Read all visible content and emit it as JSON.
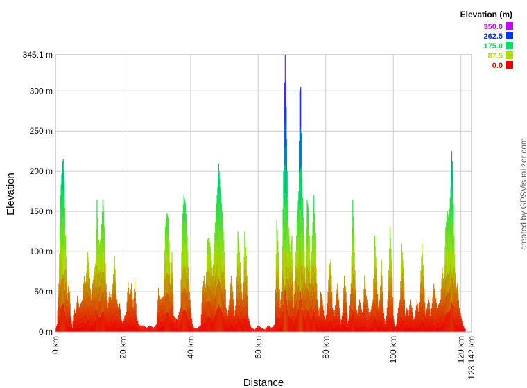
{
  "chart_data": {
    "type": "area",
    "xlabel": "Distance",
    "ylabel": "Elevation",
    "xlim": [
      0,
      123.142
    ],
    "ylim": [
      0,
      345.1
    ],
    "x_ticks": [
      {
        "value": 0,
        "label": "0 km"
      },
      {
        "value": 20,
        "label": "20 km"
      },
      {
        "value": 40,
        "label": "40 km"
      },
      {
        "value": 60,
        "label": "60 km"
      },
      {
        "value": 80,
        "label": "80 km"
      },
      {
        "value": 100,
        "label": "100 km"
      },
      {
        "value": 120,
        "label": "120 km"
      },
      {
        "value": 123.142,
        "label": "123.142 km"
      }
    ],
    "y_ticks": [
      {
        "value": 0,
        "label": "0 m"
      },
      {
        "value": 50,
        "label": "50 m"
      },
      {
        "value": 100,
        "label": "100 m"
      },
      {
        "value": 150,
        "label": "150 m"
      },
      {
        "value": 200,
        "label": "200 m"
      },
      {
        "value": 250,
        "label": "250 m"
      },
      {
        "value": 300,
        "label": "300 m"
      },
      {
        "value": 345.1,
        "label": "345.1 m"
      }
    ],
    "grid": true,
    "legend": {
      "title": "Elevation (m)",
      "position": "top-right",
      "entries": [
        {
          "label": "350.0",
          "value": 350,
          "color": "#cc00ff"
        },
        {
          "label": "262.5",
          "value": 262.5,
          "color": "#0033ff"
        },
        {
          "label": "175.0",
          "value": 175,
          "color": "#00dd66"
        },
        {
          "label": "87.5",
          "value": 87.5,
          "color": "#aadd00"
        },
        {
          "label": "0.0",
          "value": 0,
          "color": "#ee0000"
        }
      ]
    },
    "points": [
      [
        0,
        3
      ],
      [
        0.5,
        10
      ],
      [
        1,
        60
      ],
      [
        1.5,
        170
      ],
      [
        2,
        210
      ],
      [
        2.3,
        215
      ],
      [
        2.6,
        190
      ],
      [
        3,
        120
      ],
      [
        3.5,
        40
      ],
      [
        4,
        65
      ],
      [
        4.5,
        20
      ],
      [
        5,
        5
      ],
      [
        5.5,
        30
      ],
      [
        6,
        20
      ],
      [
        6.5,
        45
      ],
      [
        7,
        30
      ],
      [
        7.5,
        35
      ],
      [
        8,
        40
      ],
      [
        8.5,
        70
      ],
      [
        9,
        60
      ],
      [
        9.5,
        100
      ],
      [
        10,
        80
      ],
      [
        10.5,
        40
      ],
      [
        11,
        60
      ],
      [
        11.5,
        75
      ],
      [
        12,
        90
      ],
      [
        12.3,
        165
      ],
      [
        12.6,
        120
      ],
      [
        13,
        110
      ],
      [
        13.5,
        118
      ],
      [
        14,
        165
      ],
      [
        14.3,
        150
      ],
      [
        14.6,
        110
      ],
      [
        15,
        60
      ],
      [
        15.5,
        30
      ],
      [
        16,
        50
      ],
      [
        16.5,
        40
      ],
      [
        17,
        60
      ],
      [
        17.5,
        95
      ],
      [
        18,
        45
      ],
      [
        18.5,
        30
      ],
      [
        19,
        35
      ],
      [
        19.5,
        15
      ],
      [
        20,
        10
      ],
      [
        20.5,
        20
      ],
      [
        21,
        25
      ],
      [
        21.5,
        62
      ],
      [
        22,
        40
      ],
      [
        22.5,
        60
      ],
      [
        23,
        30
      ],
      [
        23.5,
        65
      ],
      [
        24,
        20
      ],
      [
        24.5,
        10
      ],
      [
        25,
        8
      ],
      [
        26,
        8
      ],
      [
        27,
        5
      ],
      [
        28,
        8
      ],
      [
        29,
        5
      ],
      [
        30,
        10
      ],
      [
        30.5,
        55
      ],
      [
        31,
        40
      ],
      [
        32,
        45
      ],
      [
        32.5,
        130
      ],
      [
        33,
        148
      ],
      [
        33.5,
        140
      ],
      [
        34,
        60
      ],
      [
        34.5,
        100
      ],
      [
        35,
        20
      ],
      [
        36,
        15
      ],
      [
        37,
        30
      ],
      [
        37.5,
        135
      ],
      [
        38,
        170
      ],
      [
        38.5,
        160
      ],
      [
        39,
        120
      ],
      [
        39.5,
        60
      ],
      [
        40,
        30
      ],
      [
        40.5,
        10
      ],
      [
        41,
        5
      ],
      [
        42,
        5
      ],
      [
        43,
        8
      ],
      [
        43.5,
        50
      ],
      [
        44,
        70
      ],
      [
        44.5,
        55
      ],
      [
        45,
        115
      ],
      [
        45.5,
        118
      ],
      [
        46,
        100
      ],
      [
        46.5,
        70
      ],
      [
        47,
        110
      ],
      [
        47.5,
        150
      ],
      [
        48,
        180
      ],
      [
        48.3,
        210
      ],
      [
        48.6,
        190
      ],
      [
        49,
        170
      ],
      [
        49.5,
        140
      ],
      [
        50,
        100
      ],
      [
        50.5,
        30
      ],
      [
        51,
        20
      ],
      [
        51.5,
        40
      ],
      [
        52,
        70
      ],
      [
        52.5,
        50
      ],
      [
        53,
        20
      ],
      [
        53.5,
        40
      ],
      [
        54,
        125
      ],
      [
        54.5,
        100
      ],
      [
        55,
        60
      ],
      [
        55.5,
        30
      ],
      [
        56,
        125
      ],
      [
        56.5,
        95
      ],
      [
        57,
        20
      ],
      [
        57.5,
        10
      ],
      [
        58,
        5
      ],
      [
        59,
        3
      ],
      [
        60,
        8
      ],
      [
        61,
        5
      ],
      [
        62,
        3
      ],
      [
        63,
        8
      ],
      [
        64,
        5
      ],
      [
        65,
        10
      ],
      [
        65.5,
        140
      ],
      [
        66,
        100
      ],
      [
        66.5,
        30
      ],
      [
        67,
        60
      ],
      [
        67.5,
        200
      ],
      [
        67.8,
        310
      ],
      [
        68,
        345
      ],
      [
        68.3,
        280
      ],
      [
        68.6,
        200
      ],
      [
        69,
        130
      ],
      [
        69.5,
        100
      ],
      [
        70,
        120
      ],
      [
        70.5,
        30
      ],
      [
        71,
        80
      ],
      [
        71.5,
        140
      ],
      [
        72,
        175
      ],
      [
        72.3,
        300
      ],
      [
        72.6,
        305
      ],
      [
        73,
        190
      ],
      [
        73.5,
        120
      ],
      [
        74,
        60
      ],
      [
        74.5,
        165
      ],
      [
        75,
        150
      ],
      [
        75.5,
        60
      ],
      [
        76,
        120
      ],
      [
        76.5,
        170
      ],
      [
        77,
        100
      ],
      [
        77.5,
        40
      ],
      [
        78,
        20
      ],
      [
        78.5,
        50
      ],
      [
        79,
        40
      ],
      [
        79.5,
        20
      ],
      [
        80,
        15
      ],
      [
        80.5,
        35
      ],
      [
        81,
        80
      ],
      [
        81.5,
        90
      ],
      [
        82,
        30
      ],
      [
        82.5,
        20
      ],
      [
        83,
        40
      ],
      [
        83.5,
        60
      ],
      [
        84,
        30
      ],
      [
        84.5,
        10
      ],
      [
        85,
        25
      ],
      [
        85.5,
        70
      ],
      [
        86,
        50
      ],
      [
        86.5,
        10
      ],
      [
        87,
        20
      ],
      [
        87.5,
        60
      ],
      [
        88,
        165
      ],
      [
        88.5,
        100
      ],
      [
        89,
        30
      ],
      [
        89.5,
        20
      ],
      [
        90,
        40
      ],
      [
        91,
        20
      ],
      [
        91.5,
        70
      ],
      [
        92,
        45
      ],
      [
        93,
        20
      ],
      [
        94,
        40
      ],
      [
        94.5,
        120
      ],
      [
        95,
        80
      ],
      [
        95.5,
        30
      ],
      [
        96,
        40
      ],
      [
        96.5,
        90
      ],
      [
        97,
        30
      ],
      [
        97.5,
        10
      ],
      [
        98,
        20
      ],
      [
        98.5,
        50
      ],
      [
        99,
        130
      ],
      [
        99.5,
        90
      ],
      [
        100,
        20
      ],
      [
        100.5,
        5
      ],
      [
        101,
        10
      ],
      [
        101.5,
        30
      ],
      [
        102,
        40
      ],
      [
        102.5,
        110
      ],
      [
        103,
        80
      ],
      [
        103.5,
        20
      ],
      [
        104,
        30
      ],
      [
        104.5,
        20
      ],
      [
        105,
        40
      ],
      [
        105.5,
        30
      ],
      [
        106,
        15
      ],
      [
        106.5,
        20
      ],
      [
        107,
        40
      ],
      [
        107.5,
        25
      ],
      [
        108,
        60
      ],
      [
        108.5,
        110
      ],
      [
        109,
        70
      ],
      [
        109.5,
        20
      ],
      [
        110,
        30
      ],
      [
        110.5,
        45
      ],
      [
        111,
        20
      ],
      [
        111.5,
        35
      ],
      [
        112,
        60
      ],
      [
        113,
        30
      ],
      [
        114,
        40
      ],
      [
        114.5,
        80
      ],
      [
        115,
        60
      ],
      [
        115.5,
        130
      ],
      [
        116,
        150
      ],
      [
        116.5,
        140
      ],
      [
        117,
        180
      ],
      [
        117.3,
        225
      ],
      [
        117.6,
        200
      ],
      [
        118,
        120
      ],
      [
        118.5,
        50
      ],
      [
        119,
        60
      ],
      [
        119.5,
        30
      ],
      [
        120,
        20
      ],
      [
        120.5,
        10
      ],
      [
        121,
        5
      ],
      [
        121.5,
        3
      ]
    ]
  },
  "credit": "created by GPSVisualizer.com"
}
